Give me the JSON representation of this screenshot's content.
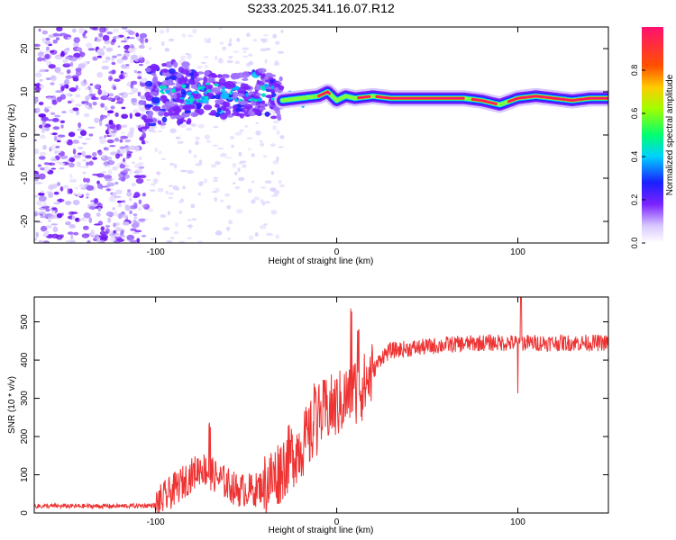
{
  "title": "S233.2025.341.16.07.R12",
  "chart_data": [
    {
      "type": "heatmap",
      "title": "S233.2025.341.16.07.R12",
      "xlabel": "Height of straight line (km)",
      "ylabel": "Frequency (Hz)",
      "xlim": [
        -167,
        150
      ],
      "ylim": [
        -25,
        25
      ],
      "xticks": [
        -100,
        0,
        100
      ],
      "yticks": [
        -20,
        -10,
        0,
        10,
        20
      ],
      "colorbar": {
        "label": "Normalized spectral amplitude",
        "range": [
          0,
          1
        ],
        "ticks": [
          0.0,
          0.2,
          0.4,
          0.6,
          0.8
        ]
      },
      "ridge": {
        "description": "dominant frequency track",
        "x": [
          -100,
          -90,
          -80,
          -70,
          -60,
          -50,
          -40,
          -30,
          -20,
          -10,
          -5,
          0,
          5,
          10,
          20,
          30,
          40,
          50,
          60,
          70,
          80,
          90,
          100,
          110,
          120,
          130,
          140,
          148
        ],
        "freq": [
          9,
          10,
          9.5,
          10,
          9,
          9.5,
          10,
          8,
          8.5,
          9,
          10,
          8,
          9,
          8.5,
          9,
          8.5,
          8.5,
          8.5,
          8.5,
          8.5,
          8,
          7,
          8.5,
          9,
          8.5,
          8,
          8.5,
          8.5
        ]
      }
    },
    {
      "type": "line",
      "xlabel": "Height of straight line (km)",
      "ylabel": "SNR (10 * v/v)",
      "xlim": [
        -167,
        150
      ],
      "ylim": [
        0,
        565
      ],
      "xticks": [
        -100,
        0,
        100
      ],
      "yticks": [
        0,
        100,
        200,
        300,
        400,
        500
      ],
      "series": [
        {
          "name": "SNR",
          "color": "#ee3333",
          "anchors_x": [
            -167,
            -120,
            -100,
            -95,
            -85,
            -75,
            -65,
            -55,
            -45,
            -35,
            -25,
            -15,
            -10,
            -5,
            0,
            5,
            10,
            15,
            20,
            25,
            30,
            40,
            60,
            80,
            100,
            120,
            150
          ],
          "anchors_y": [
            18,
            18,
            20,
            40,
            80,
            120,
            90,
            60,
            60,
            90,
            150,
            200,
            250,
            270,
            280,
            300,
            320,
            330,
            370,
            410,
            425,
            430,
            440,
            445,
            445,
            445,
            445
          ]
        }
      ]
    }
  ],
  "colors": {
    "line": "#ee3333",
    "axis": "#000000"
  }
}
